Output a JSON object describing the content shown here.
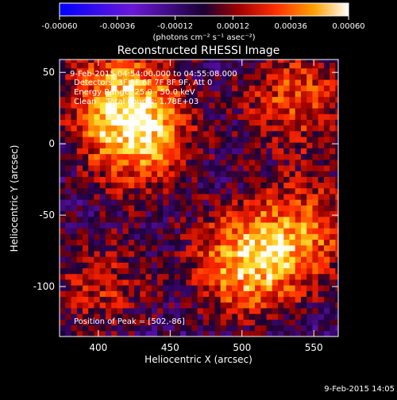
{
  "chart_data": {
    "type": "heatmap",
    "title": "Reconstructed RHESSI Image",
    "xlabel": "Heliocentric X (arcsec)",
    "ylabel": "Heliocentric Y (arcsec)",
    "xlim": [
      373,
      567
    ],
    "ylim": [
      -135,
      59
    ],
    "x_ticks": [
      400,
      450,
      500,
      550
    ],
    "y_ticks": [
      50,
      0,
      -50,
      -100
    ],
    "colorbar": {
      "range": [
        -0.0006,
        0.0006
      ],
      "ticks": [
        "-0.00060",
        "-0.00036",
        "-0.00012",
        "0.00012",
        "0.00036",
        "0.00060"
      ],
      "units_label": "(photons cm⁻² s⁻¹ asec⁻²)"
    },
    "annotations": {
      "time_range": "9-Feb-2015 04:54:00.000 to 04:55:08.000",
      "detectors": "Detectors: 3F 5F 6F 7F 8F 9F, Att 0",
      "energy": "Energy Range: 25.0 - 50.0 keV",
      "method_counts": "Clean    Total counts: 1.78E+03",
      "peak": "Position of Peak = [502,-86]"
    },
    "peak_position": [
      502,
      -86
    ],
    "sources": [
      {
        "x": 425,
        "y": 5,
        "amplitude": 0.00058
      },
      {
        "x": 502,
        "y": -86,
        "amplitude": 0.0006
      },
      {
        "x": 410,
        "y": 40,
        "amplitude": 0.00035
      },
      {
        "x": 535,
        "y": 30,
        "amplitude": 0.0004
      },
      {
        "x": 548,
        "y": -60,
        "amplitude": 0.00036
      },
      {
        "x": 400,
        "y": -100,
        "amplitude": 0.0003
      }
    ]
  },
  "footer": {
    "timestamp": "9-Feb-2015 14:05"
  }
}
